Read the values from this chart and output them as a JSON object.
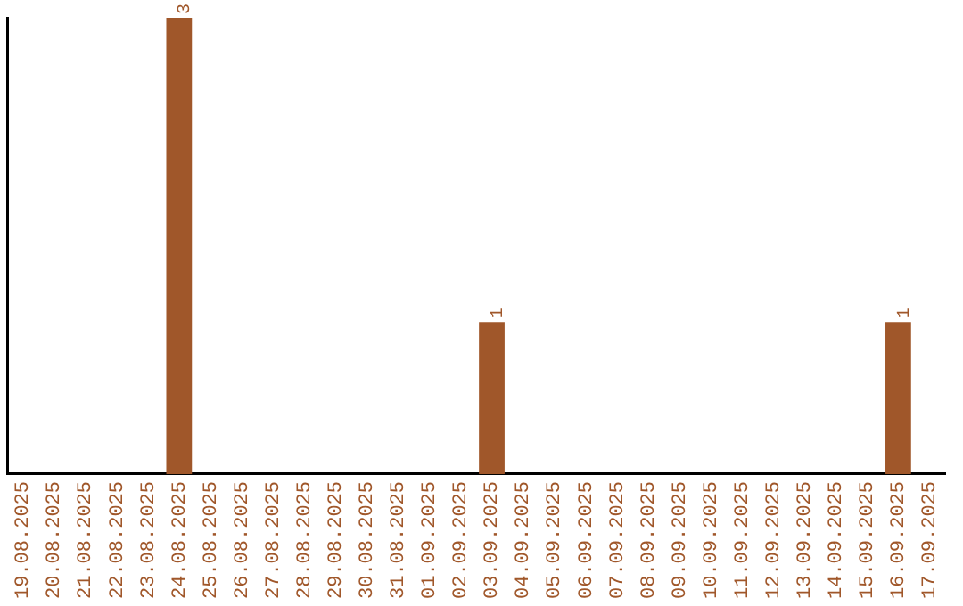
{
  "chart_data": {
    "type": "bar",
    "categories": [
      "19.08.2025",
      "20.08.2025",
      "21.08.2025",
      "22.08.2025",
      "23.08.2025",
      "24.08.2025",
      "25.08.2025",
      "26.08.2025",
      "27.08.2025",
      "28.08.2025",
      "29.08.2025",
      "30.08.2025",
      "31.08.2025",
      "01.09.2025",
      "02.09.2025",
      "03.09.2025",
      "04.09.2025",
      "05.09.2025",
      "06.09.2025",
      "07.09.2025",
      "08.09.2025",
      "09.09.2025",
      "10.09.2025",
      "11.09.2025",
      "12.09.2025",
      "13.09.2025",
      "14.09.2025",
      "15.09.2025",
      "16.09.2025",
      "17.09.2025"
    ],
    "values": [
      0,
      0,
      0,
      0,
      0,
      3,
      0,
      0,
      0,
      0,
      0,
      0,
      0,
      0,
      0,
      1,
      0,
      0,
      0,
      0,
      0,
      0,
      0,
      0,
      0,
      0,
      0,
      0,
      1,
      0
    ],
    "value_labels": [
      null,
      null,
      null,
      null,
      null,
      "3",
      null,
      null,
      null,
      null,
      null,
      null,
      null,
      null,
      null,
      "1",
      null,
      null,
      null,
      null,
      null,
      null,
      null,
      null,
      null,
      null,
      null,
      null,
      "1",
      null
    ],
    "color": "#a0572a",
    "relative": false,
    "tick_labels": "x",
    "grid": false,
    "legend": false
  }
}
